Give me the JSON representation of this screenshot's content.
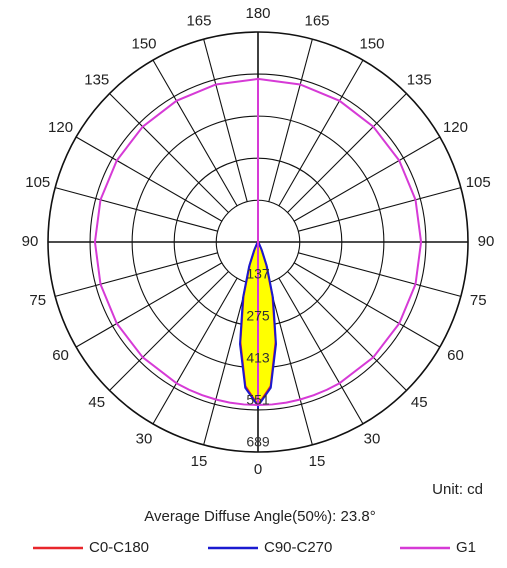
{
  "chart_data": {
    "type": "polar",
    "angles": [
      0,
      5,
      10,
      15,
      20,
      25,
      30,
      45,
      60,
      75,
      90,
      105,
      120,
      135,
      150,
      165,
      180
    ],
    "series": [
      {
        "name": "C0-C180",
        "color": "#e8262b",
        "fill": "#ffff00",
        "values": [
          535,
          475,
          333,
          183,
          78,
          25,
          6,
          0,
          0,
          0,
          0,
          0,
          0,
          0,
          0,
          0,
          0
        ]
      },
      {
        "name": "C90-C270",
        "color": "#1a1ad0",
        "values": [
          538,
          480,
          340,
          190,
          85,
          30,
          8,
          1,
          0,
          0,
          0,
          0,
          0,
          0,
          0,
          0,
          0
        ]
      },
      {
        "name": "G1",
        "color": "#d63ad6",
        "values": [
          535,
          535,
          535,
          535,
          535,
          535,
          535,
          535,
          535,
          535,
          535,
          535,
          535,
          535,
          535,
          535,
          535
        ]
      }
    ],
    "rlim": [
      0,
      689
    ],
    "rticks": [
      137,
      275,
      413,
      551,
      689
    ],
    "thetaticks": [
      0,
      15,
      30,
      45,
      60,
      75,
      90,
      105,
      120,
      135,
      150,
      165,
      180
    ],
    "unit_label": "Unit: cd",
    "annotation": "Average Diffuse Angle(50%): 23.8°",
    "grid": true
  }
}
